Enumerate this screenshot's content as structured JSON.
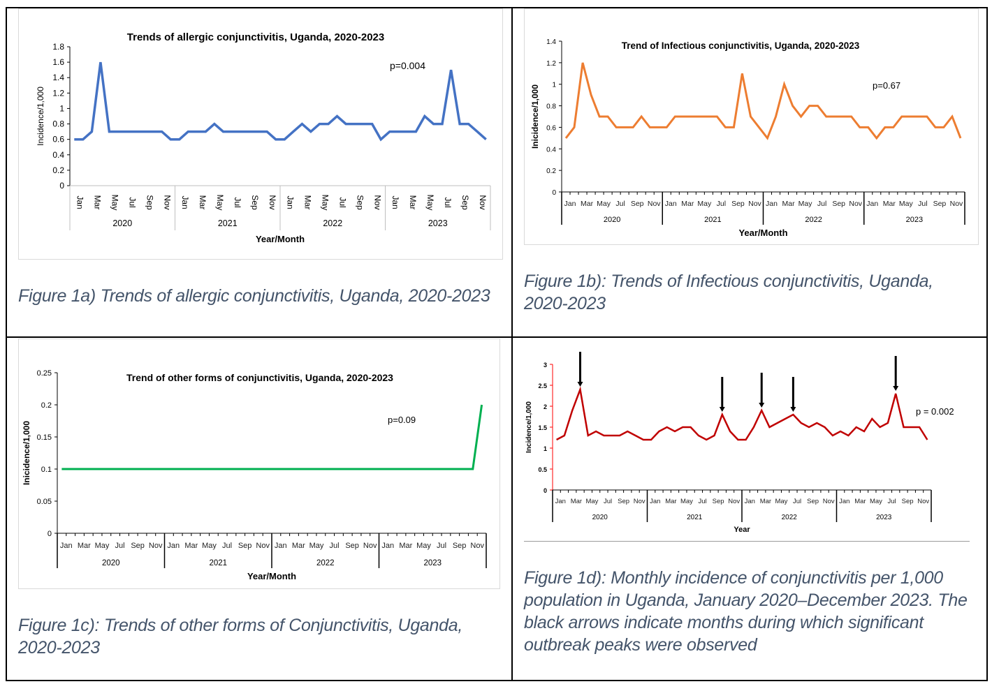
{
  "chart_data": [
    {
      "id": "1a",
      "type": "line",
      "title": "Trends of allergic conjunctivitis, Uganda, 2020-2023",
      "xlabel": "Year/Month",
      "ylabel": "Incidence/1,000",
      "annotation": "p=0.004",
      "ylim": [
        0,
        1.8
      ],
      "yticks": [
        "0",
        "0.2",
        "0.4",
        "0.6",
        "0.8",
        "1",
        "1.2",
        "1.4",
        "1.6",
        "1.8"
      ],
      "month_labels": [
        "Jan",
        "Mar",
        "May",
        "Jul",
        "Sep",
        "Nov"
      ],
      "years": [
        "2020",
        "2021",
        "2022",
        "2023"
      ],
      "color": "#4472c4",
      "values": [
        0.6,
        0.6,
        0.7,
        1.6,
        0.7,
        0.7,
        0.7,
        0.7,
        0.7,
        0.7,
        0.7,
        0.6,
        0.6,
        0.7,
        0.7,
        0.7,
        0.8,
        0.7,
        0.7,
        0.7,
        0.7,
        0.7,
        0.7,
        0.6,
        0.6,
        0.7,
        0.8,
        0.7,
        0.8,
        0.8,
        0.9,
        0.8,
        0.8,
        0.8,
        0.8,
        0.6,
        0.7,
        0.7,
        0.7,
        0.7,
        0.9,
        0.8,
        0.8,
        1.5,
        0.8,
        0.8,
        0.7,
        0.6
      ]
    },
    {
      "id": "1b",
      "type": "line",
      "title": "Trend of Infectious conjunctivitis, Uganda, 2020-2023",
      "xlabel": "Year/Month",
      "ylabel": "Inicidence/1,000",
      "annotation": "p=0.67",
      "ylim": [
        0,
        1.4
      ],
      "yticks": [
        "0",
        "0.2",
        "0.4",
        "0.6",
        "0.8",
        "1",
        "1.2",
        "1.4"
      ],
      "month_labels": [
        "Jan",
        "Mar",
        "May",
        "Jul",
        "Sep",
        "Nov"
      ],
      "years": [
        "2020",
        "2021",
        "2022",
        "2023"
      ],
      "color": "#ed7d31",
      "values": [
        0.5,
        0.6,
        1.2,
        0.9,
        0.7,
        0.7,
        0.6,
        0.6,
        0.6,
        0.7,
        0.6,
        0.6,
        0.6,
        0.7,
        0.7,
        0.7,
        0.7,
        0.7,
        0.7,
        0.6,
        0.6,
        1.1,
        0.7,
        0.6,
        0.5,
        0.7,
        1.0,
        0.8,
        0.7,
        0.8,
        0.8,
        0.7,
        0.7,
        0.7,
        0.7,
        0.6,
        0.6,
        0.5,
        0.6,
        0.6,
        0.7,
        0.7,
        0.7,
        0.7,
        0.6,
        0.6,
        0.7,
        0.5
      ]
    },
    {
      "id": "1c",
      "type": "line",
      "title": "Trend of other forms of conjunctivitis, Uganda, 2020-2023",
      "xlabel": "Year/Month",
      "ylabel": "Inicidence/1,000",
      "annotation": "p=0.09",
      "ylim": [
        0,
        0.25
      ],
      "yticks": [
        "0",
        "0.05",
        "0.1",
        "0.15",
        "0.2",
        "0.25"
      ],
      "month_labels": [
        "Jan",
        "Mar",
        "May",
        "Jul",
        "Sep",
        "Nov"
      ],
      "years": [
        "2020",
        "2021",
        "2022",
        "2023"
      ],
      "color": "#00b050",
      "values": [
        0.1,
        0.1,
        0.1,
        0.1,
        0.1,
        0.1,
        0.1,
        0.1,
        0.1,
        0.1,
        0.1,
        0.1,
        0.1,
        0.1,
        0.1,
        0.1,
        0.1,
        0.1,
        0.1,
        0.1,
        0.1,
        0.1,
        0.1,
        0.1,
        0.1,
        0.1,
        0.1,
        0.1,
        0.1,
        0.1,
        0.1,
        0.1,
        0.1,
        0.1,
        0.1,
        0.1,
        0.1,
        0.1,
        0.1,
        0.1,
        0.1,
        0.1,
        0.1,
        0.1,
        0.1,
        0.1,
        0.1,
        0.2
      ]
    },
    {
      "id": "1d",
      "type": "line",
      "title": "",
      "xlabel": "Year",
      "ylabel": "Incidence/1,000",
      "annotation": "p = 0.002",
      "ylim": [
        0,
        3
      ],
      "yticks": [
        "0",
        "0.5",
        "1",
        "1.5",
        "2",
        "2.5",
        "3"
      ],
      "month_labels": [
        "Jan",
        "Mar",
        "May",
        "Jul",
        "Sep",
        "Nov"
      ],
      "years": [
        "2020",
        "2021",
        "2022",
        "2023"
      ],
      "color": "#c00000",
      "axis_color": "#ff0000",
      "arrow_months": [
        "2020-Apr",
        "2021-Oct",
        "2022-Mar",
        "2022-Jul",
        "2023-Aug"
      ],
      "values": [
        1.2,
        1.3,
        1.9,
        2.4,
        1.3,
        1.4,
        1.3,
        1.3,
        1.3,
        1.4,
        1.3,
        1.2,
        1.2,
        1.4,
        1.5,
        1.4,
        1.5,
        1.5,
        1.3,
        1.2,
        1.3,
        1.8,
        1.4,
        1.2,
        1.2,
        1.5,
        1.9,
        1.5,
        1.6,
        1.7,
        1.8,
        1.6,
        1.5,
        1.6,
        1.5,
        1.3,
        1.4,
        1.3,
        1.5,
        1.4,
        1.7,
        1.5,
        1.6,
        2.3,
        1.5,
        1.5,
        1.5,
        1.2
      ]
    }
  ],
  "captions": {
    "a": "Figure 1a) Trends of allergic conjunctivitis, Uganda, 2020-2023",
    "b": "Figure 1b): Trends of Infectious conjunctivitis, Uganda, 2020-2023",
    "c": "Figure 1c): Trends of other forms of Conjunctivitis, Uganda, 2020-2023",
    "d": "Figure 1d): Monthly incidence of conjunctivitis per 1,000 population in Uganda, January 2020–December 2023. The black arrows indicate months during which significant outbreak peaks were observed"
  }
}
